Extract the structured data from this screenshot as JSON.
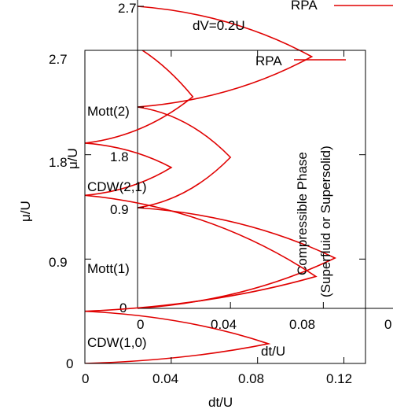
{
  "chart_data": [
    {
      "type": "line",
      "panel": "main",
      "xlabel": "dt/U",
      "ylabel": "μ/U",
      "xlim": [
        0,
        0.13
      ],
      "ylim": [
        0,
        2.7
      ],
      "x_ticks": [
        0,
        0.04,
        0.08,
        0.12
      ],
      "x_tick_labels": [
        "0",
        "0.04",
        "0.08",
        "0.12"
      ],
      "y_ticks": [
        0,
        0.9,
        1.8,
        2.7
      ],
      "y_tick_labels": [
        "0",
        "0.9",
        "1.8",
        "2.7"
      ],
      "legend": {
        "position": "top-right",
        "entries": [
          {
            "label": "RPA",
            "color": "#e00000"
          }
        ]
      },
      "series": [
        {
          "name": "RPA",
          "color": "#e00000",
          "lobes": [
            {
              "label": "CDW(1,0)",
              "mu_bottom": 0.0,
              "mu_top": 0.45,
              "tip_x": 0.085,
              "tip_mu": 0.17
            },
            {
              "label": "Mott(1)",
              "mu_bottom": 0.45,
              "mu_top": 1.45,
              "tip_x": 0.107,
              "tip_mu": 0.75
            },
            {
              "label": "CDW(2,1)",
              "mu_bottom": 1.45,
              "mu_top": 1.9,
              "tip_x": 0.04,
              "tip_mu": 1.69
            },
            {
              "label": "Mott(2)",
              "mu_bottom": 1.9,
              "mu_top": 2.9,
              "tip_x": 0.05,
              "tip_mu": 2.3
            }
          ]
        }
      ],
      "annotations": [
        "CDW(1,0)",
        "Mott(1)",
        "CDW(2,1)",
        "Mott(2)"
      ]
    },
    {
      "type": "line",
      "panel": "inset",
      "title": "dV=0.2U",
      "xlabel": "dt/U",
      "ylabel": "μ/U",
      "xlim": [
        0,
        0.11
      ],
      "ylim": [
        0,
        2.7
      ],
      "x_ticks": [
        0,
        0.04,
        0.08
      ],
      "x_tick_labels": [
        "0",
        "0.04",
        "0.08"
      ],
      "y_ticks": [
        0,
        0.9,
        1.8,
        2.7
      ],
      "y_tick_labels": [
        "0",
        "0.9",
        "1.8",
        "2.7"
      ],
      "legend": {
        "position": "top-right",
        "entries": [
          {
            "label": "RPA",
            "color": "#e00000"
          }
        ]
      },
      "series": [
        {
          "name": "RPA",
          "color": "#e00000",
          "lobes": [
            {
              "label": "Mott(1)",
              "mu_bottom": 0.0,
              "mu_top": 0.9,
              "tip_x": 0.085,
              "tip_mu": 0.45
            },
            {
              "label": "Mott(2)",
              "mu_bottom": 0.9,
              "mu_top": 1.8,
              "tip_x": 0.04,
              "tip_mu": 1.35
            },
            {
              "label": "",
              "mu_bottom": 1.8,
              "mu_top": 2.7,
              "tip_x": 0.075,
              "tip_mu": 2.25
            }
          ]
        }
      ],
      "annotations": [
        "Compressible Phase",
        "(Superfluid or Supersolid)"
      ]
    }
  ]
}
